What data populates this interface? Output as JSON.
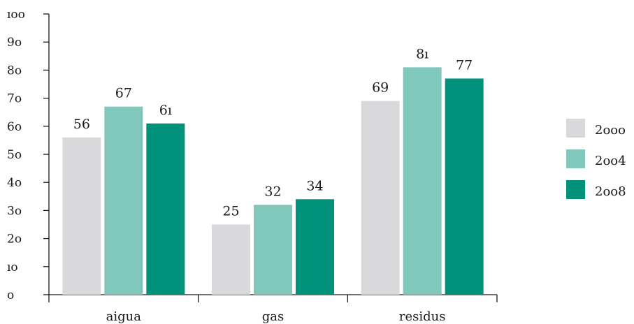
{
  "chart_data": {
    "type": "bar",
    "categories": [
      "aigua",
      "gas",
      "residus"
    ],
    "series": [
      {
        "name": "2000",
        "values": [
          56,
          25,
          69
        ],
        "color": "#d9d9db"
      },
      {
        "name": "2004",
        "values": [
          67,
          32,
          81
        ],
        "color": "#80c8bc"
      },
      {
        "name": "2008",
        "values": [
          61,
          34,
          77
        ],
        "color": "#00917a"
      }
    ],
    "ylim": [
      0,
      100
    ],
    "yticks": [
      0,
      10,
      20,
      30,
      40,
      50,
      60,
      70,
      80,
      90,
      100
    ],
    "ytick_labels": [
      "o",
      "ıo",
      "2o",
      "3o",
      "4o",
      "5o",
      "6o",
      "7o",
      "8o",
      "9o",
      "ıoo"
    ],
    "data_labels": [
      [
        "56",
        "25",
        "69"
      ],
      [
        "67",
        "32",
        "8ı"
      ],
      [
        "6ı",
        "34",
        "77"
      ]
    ],
    "legend_labels": [
      "2ooo",
      "2oo4",
      "2oo8"
    ],
    "legend_position": "right",
    "grid": false,
    "title": "",
    "xlabel": "",
    "ylabel": ""
  }
}
